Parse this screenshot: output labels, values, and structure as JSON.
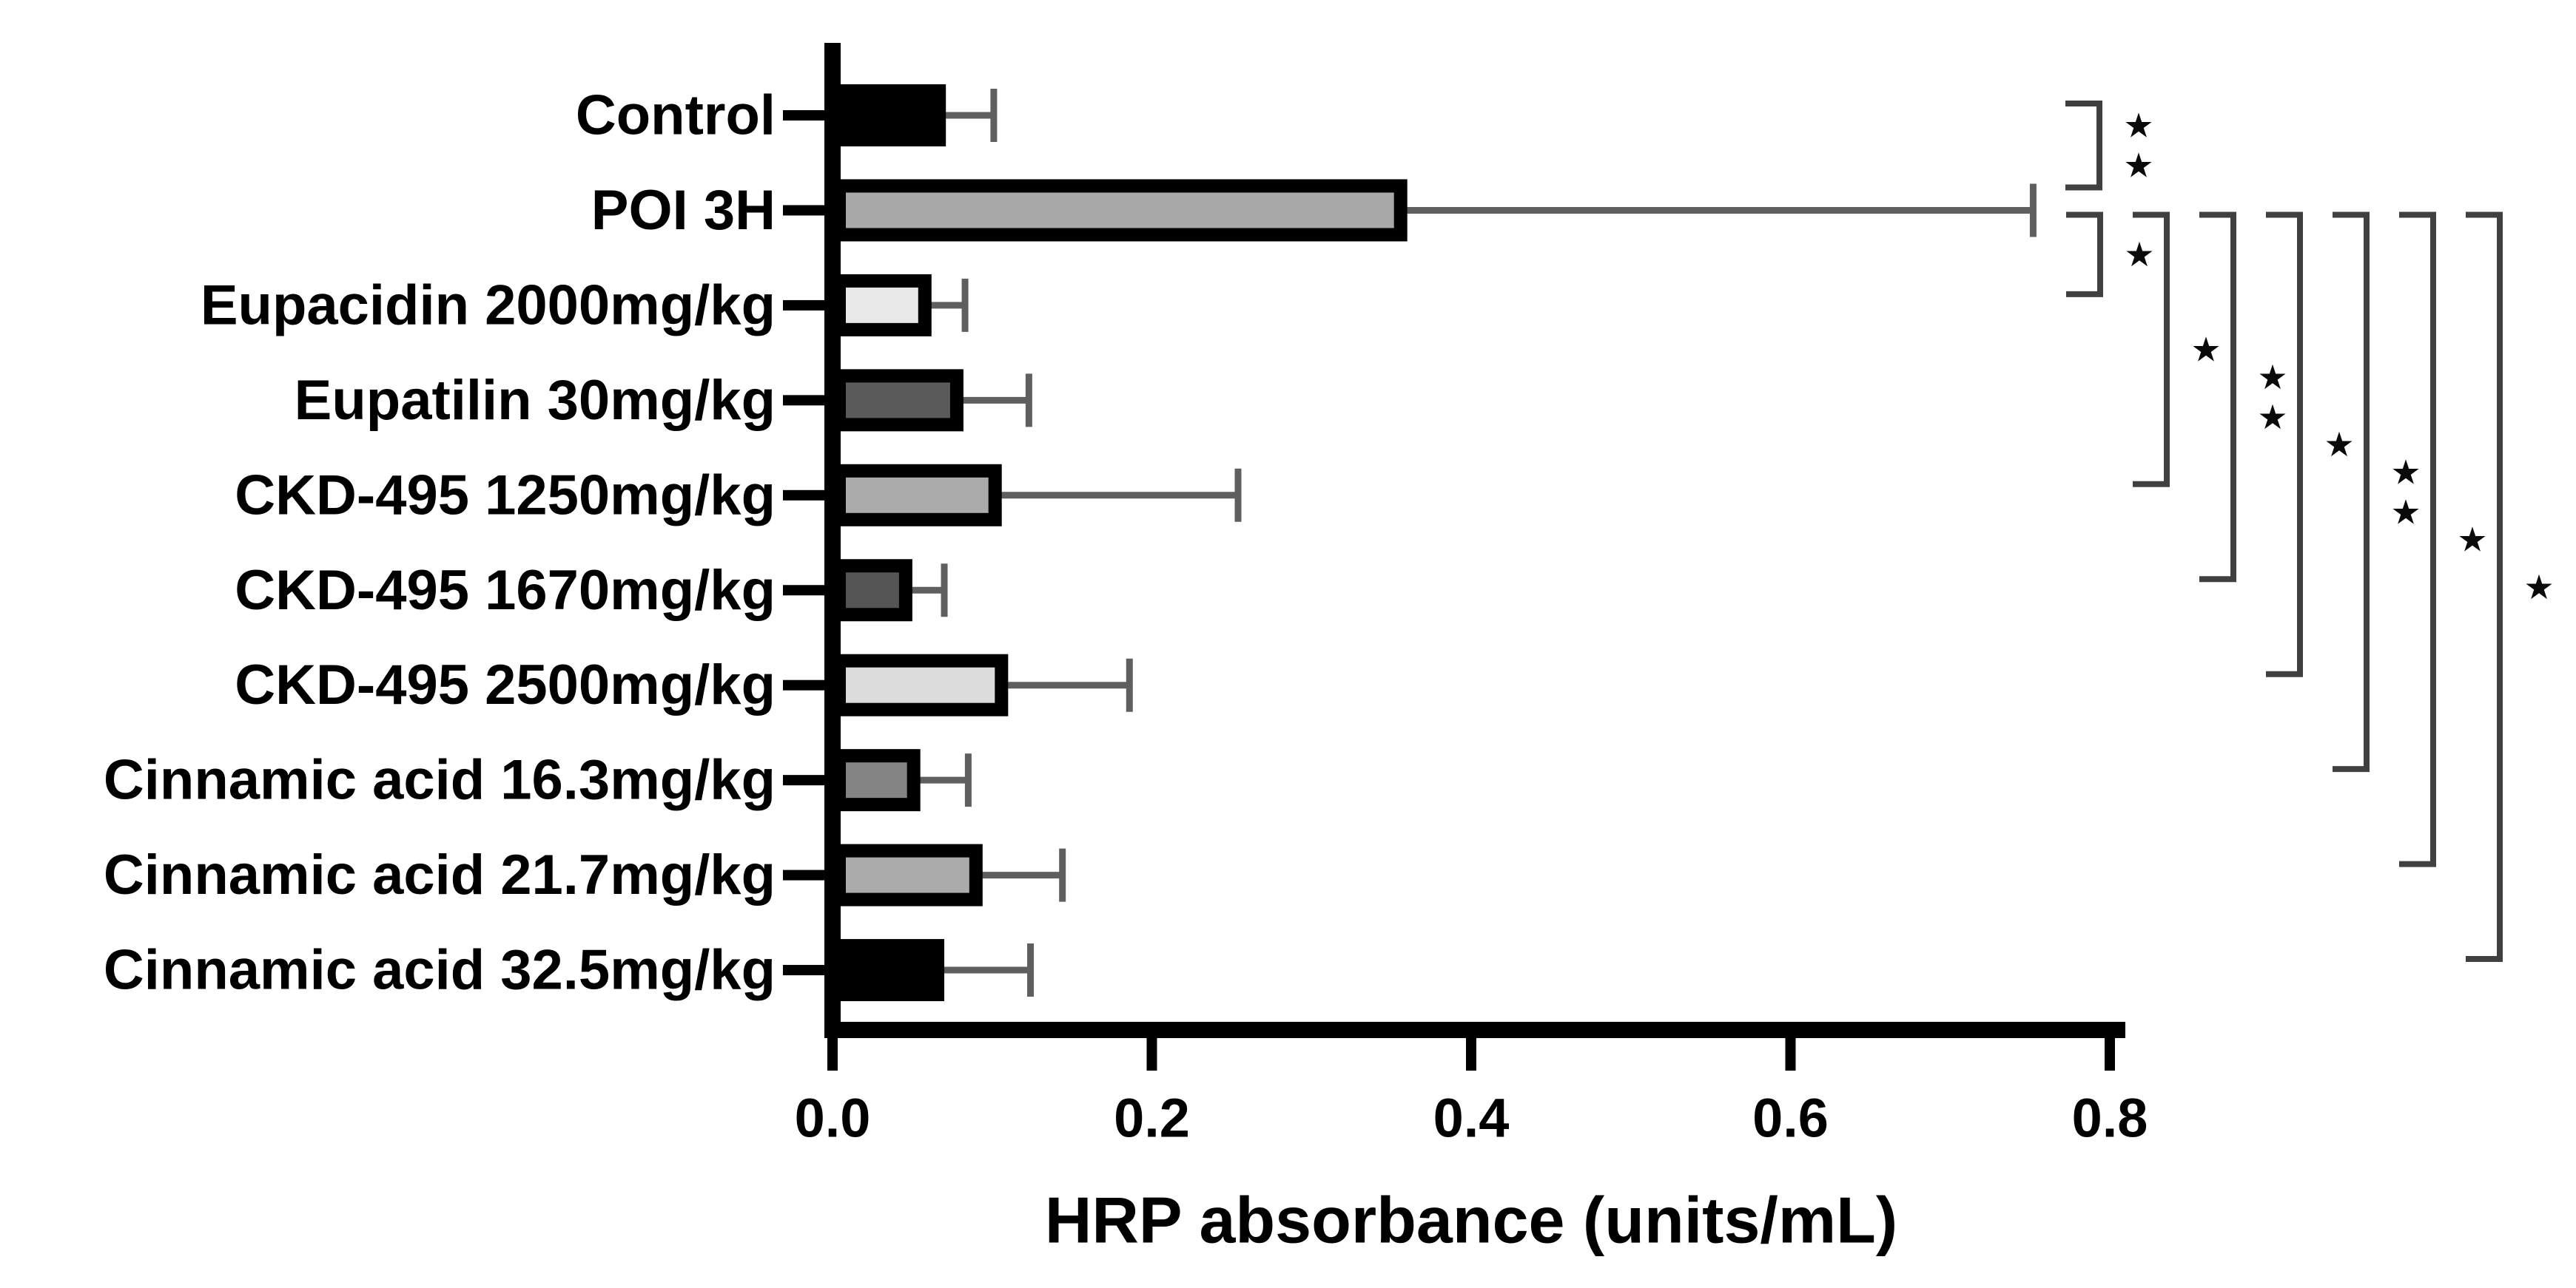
{
  "chart_data": {
    "type": "bar",
    "orientation": "horizontal",
    "title": "",
    "xlabel": "HRP absorbance (units/mL)",
    "ylabel": "",
    "xlim": [
      0,
      0.8
    ],
    "grid": false,
    "legend": "none",
    "x_ticks": [
      0.0,
      0.2,
      0.4,
      0.6,
      0.8
    ],
    "x_tick_labels": [
      "0.0",
      "0.2",
      "0.4",
      "0.6",
      "0.8"
    ],
    "categories": [
      "Control",
      "POI 3H",
      "Eupacidin 2000mg/kg",
      "Eupatilin 30mg/kg",
      "CKD-495 1250mg/kg",
      "CKD-495 1670mg/kg",
      "CKD-495 2500mg/kg",
      "Cinnamic acid 16.3mg/kg",
      "Cinnamic acid 21.7mg/kg",
      "Cinnamic acid 32.5mg/kg"
    ],
    "values": [
      0.071,
      0.36,
      0.062,
      0.082,
      0.106,
      0.05,
      0.11,
      0.055,
      0.094,
      0.07
    ],
    "errors_plus": [
      0.03,
      0.392,
      0.021,
      0.041,
      0.148,
      0.02,
      0.076,
      0.03,
      0.05,
      0.054
    ],
    "bar_fill_colors": [
      "#000000",
      "#a8a8a8",
      "#e8e8e8",
      "#5a5a5a",
      "#ababab",
      "#555555",
      "#dcdcdc",
      "#848484",
      "#ababab",
      "#000000"
    ],
    "bar_border_color": "#000000",
    "error_bar_color": "#5f5f5f",
    "bracket_color": "#404040",
    "significance_brackets": [
      {
        "from": 0,
        "to": 1,
        "label": "**"
      },
      {
        "from": 1,
        "to": 2,
        "label": "*"
      },
      {
        "from": 1,
        "to": 4,
        "label": "*"
      },
      {
        "from": 1,
        "to": 5,
        "label": "**"
      },
      {
        "from": 1,
        "to": 6,
        "label": "*"
      },
      {
        "from": 1,
        "to": 7,
        "label": "**"
      },
      {
        "from": 1,
        "to": 8,
        "label": "*"
      },
      {
        "from": 1,
        "to": 9,
        "label": "*"
      }
    ]
  }
}
